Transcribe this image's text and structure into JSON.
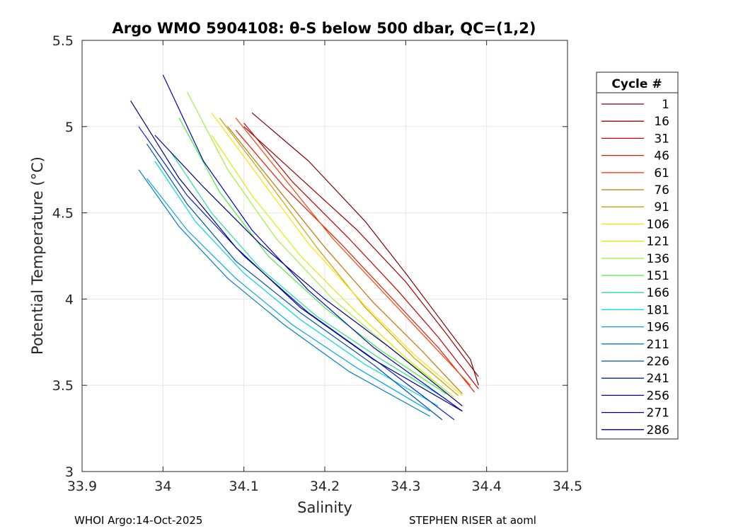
{
  "chart_data": {
    "type": "line",
    "title": "Argo WMO 5904108: θ-S below 500 dbar,  QC=(1,2)",
    "xlabel": "Salinity",
    "ylabel": "Potential Temperature (°C)",
    "xlim": [
      33.9,
      34.5
    ],
    "ylim": [
      3,
      5.5
    ],
    "x_ticks": [
      "33.9",
      "34",
      "34.1",
      "34.2",
      "34.3",
      "34.4",
      "34.5"
    ],
    "y_ticks": [
      "3",
      "3.5",
      "4",
      "4.5",
      "5",
      "5.5"
    ],
    "grid": true,
    "legend": {
      "title": "Cycle #",
      "placement": "right-outside",
      "entries": [
        {
          "label": "1",
          "color": "#7f0000"
        },
        {
          "label": "16",
          "color": "#a00000"
        },
        {
          "label": "31",
          "color": "#c80000"
        },
        {
          "label": "46",
          "color": "#e41a00"
        },
        {
          "label": "61",
          "color": "#ff4000"
        },
        {
          "label": "76",
          "color": "#b87800"
        },
        {
          "label": "91",
          "color": "#c8a000"
        },
        {
          "label": "106",
          "color": "#ffe000"
        },
        {
          "label": "121",
          "color": "#d8f000"
        },
        {
          "label": "136",
          "color": "#a0f040"
        },
        {
          "label": "151",
          "color": "#40f040"
        },
        {
          "label": "166",
          "color": "#20e0a0"
        },
        {
          "label": "181",
          "color": "#00d8d8"
        },
        {
          "label": "196",
          "color": "#00a8e8"
        },
        {
          "label": "211",
          "color": "#0080c0"
        },
        {
          "label": "226",
          "color": "#0050b0"
        },
        {
          "label": "241",
          "color": "#0020d0"
        },
        {
          "label": "256",
          "color": "#0000c0"
        },
        {
          "label": "271",
          "color": "#000090"
        },
        {
          "label": "286",
          "color": "#00007a"
        }
      ]
    },
    "series": [
      {
        "name": "1",
        "color": "#7f0000",
        "x": [
          34.11,
          34.18,
          34.25,
          34.3,
          34.34,
          34.38,
          34.39
        ],
        "y": [
          5.08,
          4.8,
          4.45,
          4.15,
          3.9,
          3.65,
          3.5
        ]
      },
      {
        "name": "16",
        "color": "#a00000",
        "x": [
          34.1,
          34.17,
          34.24,
          34.3,
          34.35,
          34.39
        ],
        "y": [
          5.0,
          4.7,
          4.4,
          4.1,
          3.8,
          3.55
        ]
      },
      {
        "name": "31",
        "color": "#c80000",
        "x": [
          34.1,
          34.16,
          34.23,
          34.29,
          34.34,
          34.39
        ],
        "y": [
          5.02,
          4.68,
          4.35,
          4.05,
          3.78,
          3.48
        ]
      },
      {
        "name": "46",
        "color": "#e41a00",
        "x": [
          34.09,
          34.15,
          34.22,
          34.28,
          34.34,
          34.385
        ],
        "y": [
          4.98,
          4.65,
          4.32,
          4.02,
          3.72,
          3.46
        ]
      },
      {
        "name": "61",
        "color": "#ff4000",
        "x": [
          34.09,
          34.15,
          34.21,
          34.28,
          34.33,
          34.38
        ],
        "y": [
          5.05,
          4.7,
          4.35,
          4.0,
          3.75,
          3.5
        ]
      },
      {
        "name": "76",
        "color": "#b87800",
        "x": [
          34.08,
          34.14,
          34.2,
          34.26,
          34.32,
          34.37
        ],
        "y": [
          5.0,
          4.65,
          4.3,
          3.98,
          3.7,
          3.45
        ]
      },
      {
        "name": "91",
        "color": "#c8a000",
        "x": [
          34.07,
          34.13,
          34.19,
          34.25,
          34.31,
          34.365
        ],
        "y": [
          5.05,
          4.68,
          4.3,
          3.95,
          3.66,
          3.44
        ]
      },
      {
        "name": "106",
        "color": "#ffe000",
        "x": [
          34.06,
          34.12,
          34.18,
          34.25,
          34.31,
          34.37
        ],
        "y": [
          5.08,
          4.7,
          4.32,
          3.96,
          3.68,
          3.44
        ]
      },
      {
        "name": "121",
        "color": "#d8f000",
        "x": [
          34.06,
          34.11,
          34.17,
          34.24,
          34.3,
          34.36
        ],
        "y": [
          4.95,
          4.6,
          4.25,
          3.92,
          3.66,
          3.43
        ]
      },
      {
        "name": "136",
        "color": "#a0f040",
        "x": [
          34.03,
          34.08,
          34.14,
          34.21,
          34.28,
          34.355
        ],
        "y": [
          5.2,
          4.75,
          4.35,
          4.0,
          3.72,
          3.45
        ]
      },
      {
        "name": "151",
        "color": "#40f040",
        "x": [
          34.02,
          34.07,
          34.13,
          34.2,
          34.27,
          34.35
        ],
        "y": [
          5.05,
          4.62,
          4.25,
          3.95,
          3.7,
          3.45
        ]
      },
      {
        "name": "166",
        "color": "#20e0a0",
        "x": [
          34.01,
          34.06,
          34.12,
          34.19,
          34.27,
          34.35
        ],
        "y": [
          4.85,
          4.5,
          4.18,
          3.9,
          3.65,
          3.42
        ]
      },
      {
        "name": "181",
        "color": "#00d8d8",
        "x": [
          33.99,
          34.04,
          34.1,
          34.17,
          34.25,
          34.34
        ],
        "y": [
          4.8,
          4.45,
          4.15,
          3.88,
          3.62,
          3.38
        ]
      },
      {
        "name": "196",
        "color": "#00a8e8",
        "x": [
          33.98,
          34.03,
          34.09,
          34.16,
          34.24,
          34.33
        ],
        "y": [
          4.7,
          4.4,
          4.12,
          3.85,
          3.6,
          3.35
        ]
      },
      {
        "name": "211",
        "color": "#0080c0",
        "x": [
          33.97,
          34.02,
          34.08,
          34.15,
          34.23,
          34.33
        ],
        "y": [
          4.75,
          4.42,
          4.12,
          3.85,
          3.58,
          3.32
        ]
      },
      {
        "name": "226",
        "color": "#0050b0",
        "x": [
          33.98,
          34.03,
          34.09,
          34.17,
          34.26,
          34.345
        ],
        "y": [
          4.9,
          4.55,
          4.22,
          3.92,
          3.62,
          3.3
        ]
      },
      {
        "name": "241",
        "color": "#0020d0",
        "x": [
          33.97,
          34.03,
          34.1,
          34.18,
          34.27,
          34.36
        ],
        "y": [
          5.0,
          4.6,
          4.25,
          3.92,
          3.62,
          3.3
        ]
      },
      {
        "name": "256",
        "color": "#0000c0",
        "x": [
          34.0,
          34.05,
          34.11,
          34.18,
          34.26,
          34.37
        ],
        "y": [
          5.3,
          4.8,
          4.4,
          4.05,
          3.72,
          3.35
        ]
      },
      {
        "name": "271",
        "color": "#000090",
        "x": [
          33.99,
          34.05,
          34.12,
          34.2,
          34.28,
          34.37
        ],
        "y": [
          4.95,
          4.65,
          4.32,
          4.0,
          3.72,
          3.38
        ]
      },
      {
        "name": "286",
        "color": "#00007a",
        "x": [
          33.96,
          34.02,
          34.09,
          34.17,
          34.26,
          34.37
        ],
        "y": [
          5.15,
          4.7,
          4.3,
          3.95,
          3.65,
          3.35
        ]
      }
    ]
  },
  "footer": {
    "left": "WHOI Argo:14-Oct-2025",
    "right": "STEPHEN RISER at aoml"
  }
}
